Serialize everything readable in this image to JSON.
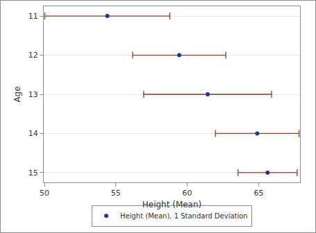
{
  "chart_data": {
    "type": "scatter",
    "orientation": "horizontal",
    "x_label": "Height (Mean)",
    "y_label": "Age",
    "categories": [
      "11",
      "12",
      "13",
      "14",
      "15"
    ],
    "series": [
      {
        "name": "Height (Mean), 1 Standard Deviation",
        "color": "#1f3a8c",
        "marker": "circle",
        "values": [
          54.4,
          59.44,
          61.43,
          64.9,
          65.63
        ],
        "error": [
          4.38,
          3.26,
          4.48,
          2.93,
          2.07
        ]
      }
    ],
    "xlim": [
      49.95,
      67.9
    ],
    "xticks": [
      50,
      55,
      60,
      65
    ],
    "grid": true,
    "legend": "bottom"
  }
}
